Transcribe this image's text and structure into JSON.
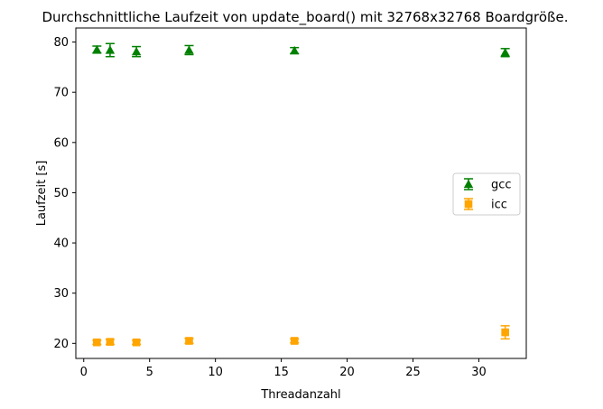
{
  "chart_data": {
    "type": "scatter",
    "title": "Durchschnittliche Laufzeit von update_board() mit 32768x32768 Boardgröße.",
    "xlabel": "Threadanzahl",
    "ylabel": "Laufzeit [s]",
    "xlim": [
      -0.6,
      33.6
    ],
    "ylim": [
      17,
      82.8
    ],
    "xticks": [
      0,
      5,
      10,
      15,
      20,
      25,
      30
    ],
    "yticks": [
      20,
      30,
      40,
      50,
      60,
      70,
      80
    ],
    "grid": false,
    "legend_position": "center-right",
    "series": [
      {
        "name": "gcc",
        "color": "#008000",
        "marker": "triangle",
        "error_bars": true,
        "x": [
          1,
          2,
          4,
          8,
          16,
          32
        ],
        "y": [
          78.5,
          78.4,
          78.1,
          78.4,
          78.3,
          77.9
        ],
        "err": [
          0.7,
          1.3,
          1.0,
          0.9,
          0.6,
          0.8
        ]
      },
      {
        "name": "icc",
        "color": "#ffa500",
        "marker": "square",
        "error_bars": true,
        "x": [
          1,
          2,
          4,
          8,
          16,
          32
        ],
        "y": [
          20.2,
          20.3,
          20.2,
          20.5,
          20.5,
          22.2
        ],
        "err": [
          0.4,
          0.5,
          0.4,
          0.5,
          0.4,
          1.3
        ]
      }
    ]
  }
}
